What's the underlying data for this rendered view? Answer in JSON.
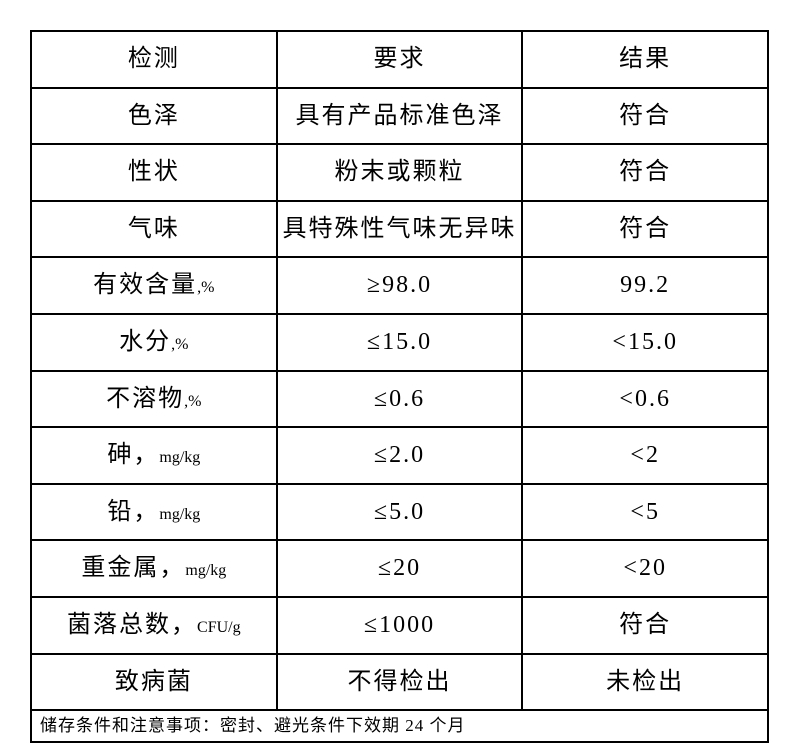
{
  "table": {
    "header": {
      "test": "检测",
      "requirement": "要求",
      "result": "结果"
    },
    "rows": [
      {
        "test": "色泽",
        "unit": "",
        "requirement": "具有产品标准色泽",
        "result": "符合"
      },
      {
        "test": "性状",
        "unit": "",
        "requirement": "粉末或颗粒",
        "result": "符合"
      },
      {
        "test": "气味",
        "unit": "",
        "requirement": "具特殊性气味无异味",
        "result": "符合"
      },
      {
        "test": "有效含量",
        "unit": ",%",
        "requirement": "≥98.0",
        "result": "99.2"
      },
      {
        "test": "水分",
        "unit": ",%",
        "requirement": "≤15.0",
        "result": "<15.0"
      },
      {
        "test": "不溶物",
        "unit": ",%",
        "requirement": "≤0.6",
        "result": "<0.6"
      },
      {
        "test": "砷，",
        "unit": "mg/kg",
        "requirement": "≤2.0",
        "result": "<2"
      },
      {
        "test": "铅，",
        "unit": "mg/kg",
        "requirement": "≤5.0",
        "result": "<5"
      },
      {
        "test": "重金属，",
        "unit": "mg/kg",
        "requirement": "≤20",
        "result": "<20"
      },
      {
        "test": "菌落总数，",
        "unit": "CFU/g",
        "requirement": "≤1000",
        "result": "符合"
      },
      {
        "test": "致病菌",
        "unit": "",
        "requirement": "不得检出",
        "result": "未检出"
      }
    ],
    "footer": "储存条件和注意事项：密封、避光条件下效期 24 个月",
    "border_color": "#000000",
    "background_color": "#ffffff",
    "text_color": "#000000"
  }
}
